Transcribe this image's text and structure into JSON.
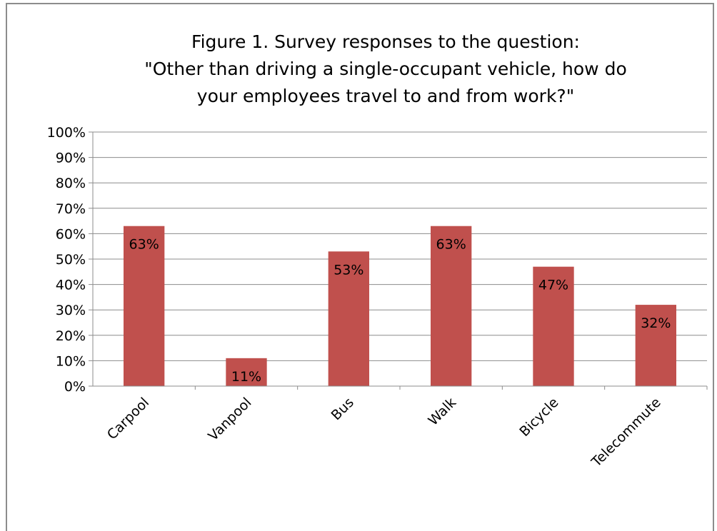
{
  "chart_data": {
    "type": "bar",
    "title": [
      "Figure 1. Survey responses to the question:",
      "\"Other than driving a single-occupant vehicle, how do",
      "your employees travel to and from work?\""
    ],
    "categories": [
      "Carpool",
      "Vanpool",
      "Bus",
      "Walk",
      "Bicycle",
      "Telecommute"
    ],
    "values": [
      63,
      11,
      53,
      63,
      47,
      32
    ],
    "data_labels": [
      "63%",
      "11%",
      "53%",
      "63%",
      "47%",
      "32%"
    ],
    "ylim": [
      0,
      100
    ],
    "y_ticks": [
      0,
      10,
      20,
      30,
      40,
      50,
      60,
      70,
      80,
      90,
      100
    ],
    "y_tick_labels": [
      "0%",
      "10%",
      "20%",
      "30%",
      "40%",
      "50%",
      "60%",
      "70%",
      "80%",
      "90%",
      "100%"
    ],
    "xlabel": "",
    "ylabel": "",
    "grid": true,
    "legend": "none",
    "colors": {
      "bar": "#c0504d",
      "grid": "#8c8c8c",
      "axis": "#8c8c8c"
    }
  }
}
